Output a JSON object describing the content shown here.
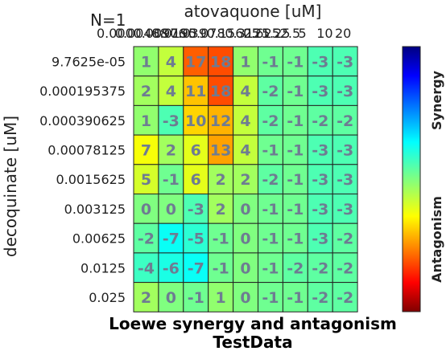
{
  "chart_data": {
    "type": "heatmap",
    "title": "atovaquone [uM]",
    "ylabel": "decoquinate [uM]",
    "corner_label": "N=1",
    "subtitle_line1": "Loewe synergy and antagonism",
    "subtitle_line2": "TestData",
    "colorbar_top_label": "Synergy",
    "colorbar_bottom_label": "Antagonism",
    "x_tick_labels_overlapped": [
      "0.000",
      "0.00488",
      "0.00976",
      "0.0195",
      "0.039",
      "0.078",
      "0.15625",
      "0.3125",
      "0.625",
      "1.25",
      "2.5",
      "5",
      "10",
      "20"
    ],
    "y_tick_labels": [
      "9.7625e-05",
      "0.000195375",
      "0.000390625",
      "0.00078125",
      "0.0015625",
      "0.003125",
      "0.00625",
      "0.0125",
      "0.025"
    ],
    "values": [
      [
        1,
        4,
        17,
        18,
        1,
        -1,
        -1,
        -3,
        -3
      ],
      [
        2,
        4,
        11,
        18,
        4,
        -2,
        -1,
        -3,
        -3
      ],
      [
        1,
        -3,
        10,
        12,
        4,
        -2,
        -1,
        -2,
        -2
      ],
      [
        7,
        2,
        6,
        13,
        4,
        -1,
        -1,
        -3,
        -3
      ],
      [
        5,
        -1,
        6,
        2,
        2,
        -2,
        -1,
        -3,
        -3
      ],
      [
        0,
        0,
        -3,
        2,
        0,
        -1,
        -1,
        -3,
        -3
      ],
      [
        -2,
        -7,
        -5,
        -1,
        0,
        -1,
        -1,
        -3,
        -2
      ],
      [
        -4,
        -6,
        -7,
        -1,
        0,
        -1,
        -2,
        -2,
        -2
      ],
      [
        2,
        0,
        -1,
        1,
        0,
        -1,
        -1,
        -2,
        -2
      ]
    ],
    "color_range": [
      -30,
      30
    ],
    "colormap": "jet"
  }
}
